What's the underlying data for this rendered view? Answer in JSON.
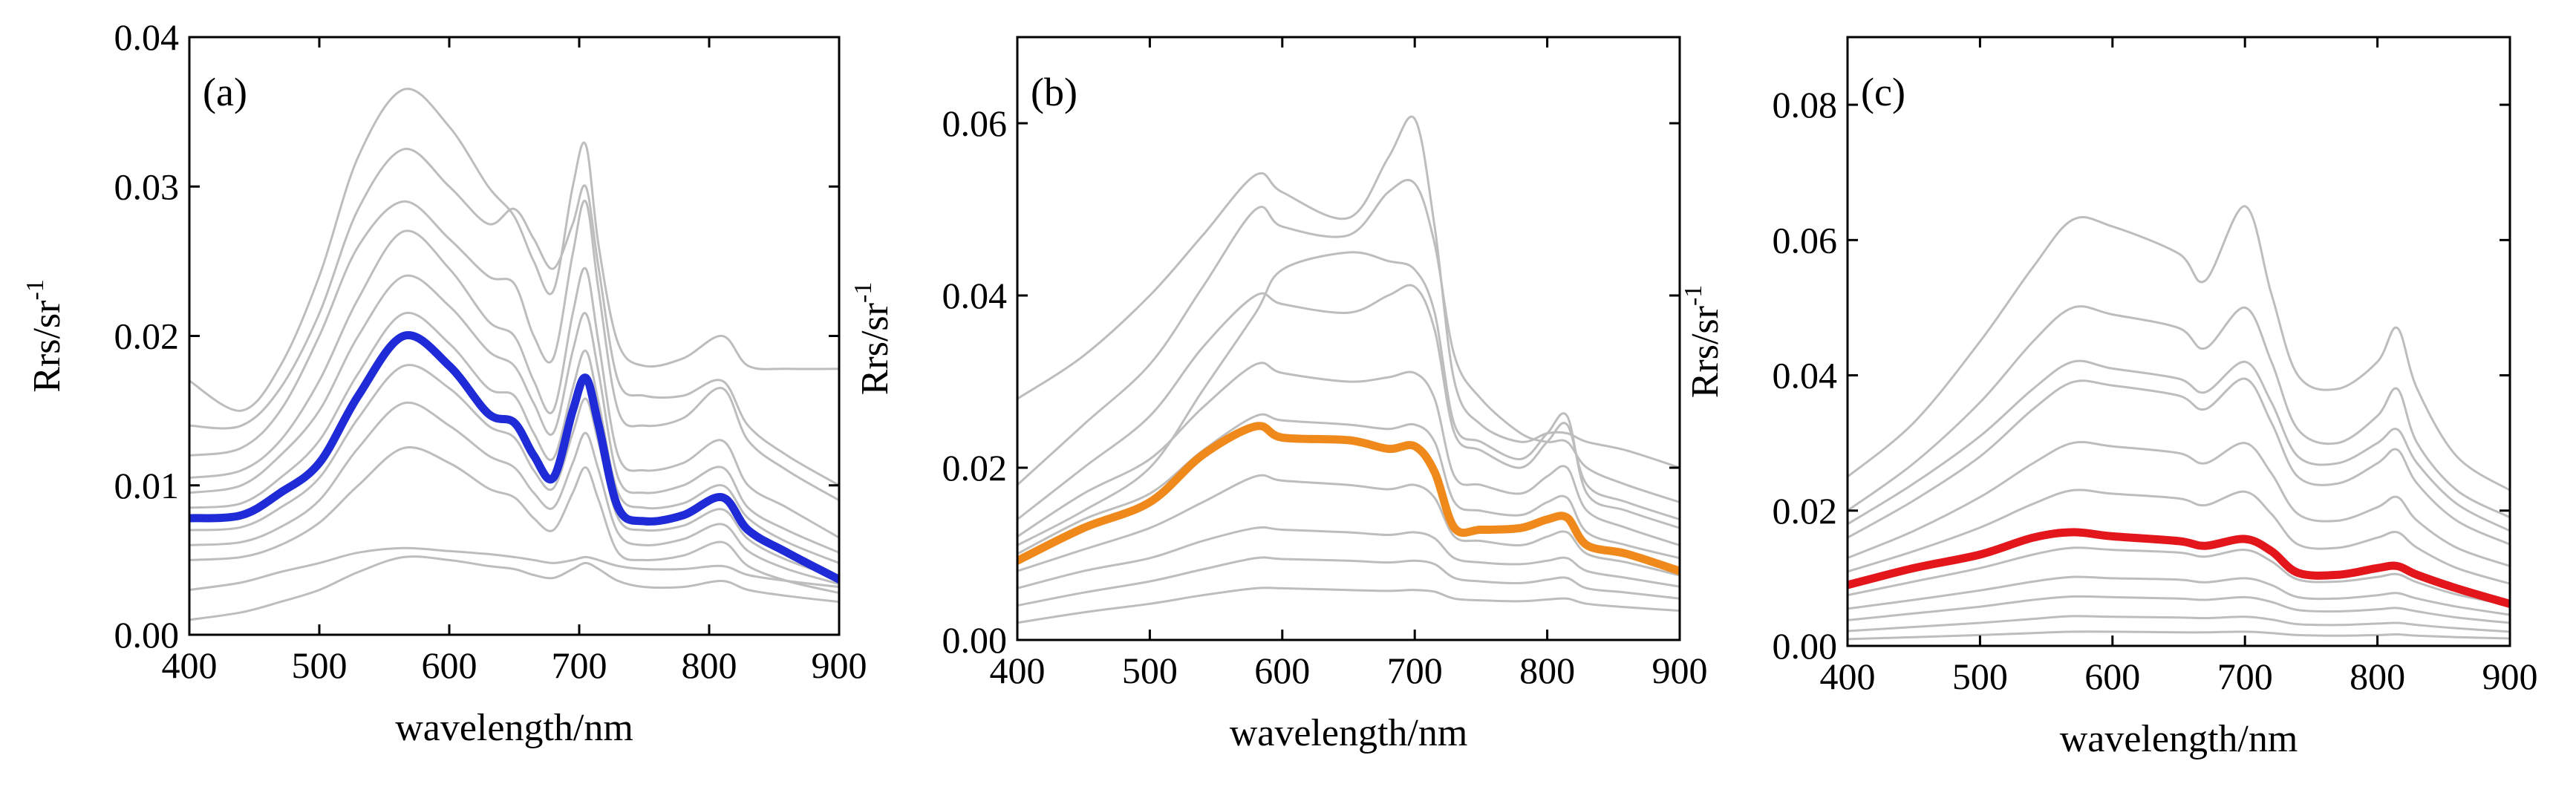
{
  "chart_data": [
    {
      "type": "line",
      "panel_label": "(a)",
      "xlabel": "wavelength/nm",
      "ylabel": "Rrs/sr",
      "ylabel_sup": "-1",
      "xlim": [
        400,
        900
      ],
      "ylim": [
        0,
        0.04
      ],
      "xticks": [
        400,
        500,
        600,
        700,
        800,
        900
      ],
      "xtick_labels": [
        "400",
        "500",
        "600",
        "700",
        "800",
        "900"
      ],
      "yticks": [
        0,
        0.01,
        0.02,
        0.03,
        0.04
      ],
      "ytick_labels": [
        "0.00",
        "0.01",
        "0.02",
        "0.03",
        "0.04"
      ],
      "mean_color": "#1f2bd6",
      "sample_color": "#bdbdbd",
      "x": [
        400,
        440,
        470,
        500,
        530,
        565,
        600,
        630,
        650,
        665,
        680,
        695,
        705,
        715,
        730,
        750,
        780,
        810,
        830,
        860,
        900
      ],
      "series": [
        {
          "name": "mean",
          "values": [
            0.0078,
            0.008,
            0.0095,
            0.0115,
            0.016,
            0.02,
            0.018,
            0.0148,
            0.0142,
            0.012,
            0.0105,
            0.015,
            0.0172,
            0.014,
            0.0085,
            0.0076,
            0.008,
            0.0092,
            0.007,
            0.0055,
            0.0037
          ]
        },
        {
          "name": "sample",
          "values": [
            0.017,
            0.015,
            0.018,
            0.024,
            0.032,
            0.0365,
            0.034,
            0.03,
            0.028,
            0.025,
            0.023,
            0.03,
            0.0328,
            0.026,
            0.0195,
            0.018,
            0.0185,
            0.02,
            0.018,
            0.0178,
            0.0178
          ]
        },
        {
          "name": "sample",
          "values": [
            0.012,
            0.0125,
            0.015,
            0.02,
            0.026,
            0.029,
            0.0265,
            0.024,
            0.0235,
            0.02,
            0.0185,
            0.0255,
            0.029,
            0.023,
            0.015,
            0.014,
            0.0145,
            0.0165,
            0.013,
            0.011,
            0.009
          ]
        },
        {
          "name": "sample",
          "values": [
            0.0105,
            0.011,
            0.013,
            0.017,
            0.0225,
            0.027,
            0.0245,
            0.021,
            0.02,
            0.017,
            0.015,
            0.0215,
            0.0245,
            0.0195,
            0.012,
            0.011,
            0.0115,
            0.013,
            0.01,
            0.0085,
            0.0065
          ]
        },
        {
          "name": "sample",
          "values": [
            0.0095,
            0.01,
            0.012,
            0.015,
            0.02,
            0.024,
            0.022,
            0.019,
            0.018,
            0.0155,
            0.0135,
            0.019,
            0.0215,
            0.0175,
            0.0105,
            0.0095,
            0.01,
            0.0112,
            0.0085,
            0.007,
            0.0055
          ]
        },
        {
          "name": "sample",
          "values": [
            0.0085,
            0.0088,
            0.0105,
            0.013,
            0.0175,
            0.0215,
            0.0195,
            0.0165,
            0.016,
            0.0135,
            0.0118,
            0.0165,
            0.019,
            0.0155,
            0.0095,
            0.0085,
            0.0088,
            0.01,
            0.0078,
            0.0062,
            0.0048
          ]
        },
        {
          "name": "sample",
          "values": [
            0.007,
            0.0072,
            0.0085,
            0.0105,
            0.0145,
            0.018,
            0.0165,
            0.014,
            0.0132,
            0.011,
            0.0098,
            0.0135,
            0.0158,
            0.0128,
            0.0078,
            0.007,
            0.0073,
            0.0084,
            0.0064,
            0.005,
            0.0038
          ]
        },
        {
          "name": "sample",
          "values": [
            0.006,
            0.0062,
            0.0072,
            0.009,
            0.0125,
            0.0155,
            0.014,
            0.012,
            0.0112,
            0.0095,
            0.0085,
            0.0115,
            0.0135,
            0.011,
            0.0068,
            0.006,
            0.0064,
            0.0074,
            0.0056,
            0.0044,
            0.0034
          ]
        },
        {
          "name": "sample",
          "values": [
            0.005,
            0.0052,
            0.006,
            0.0075,
            0.01,
            0.0125,
            0.0115,
            0.0098,
            0.0092,
            0.0078,
            0.007,
            0.0095,
            0.0112,
            0.009,
            0.0055,
            0.005,
            0.0053,
            0.0062,
            0.0046,
            0.0036,
            0.0028
          ]
        },
        {
          "name": "sample",
          "values": [
            0.003,
            0.0035,
            0.0042,
            0.0048,
            0.0055,
            0.0058,
            0.0056,
            0.0054,
            0.0052,
            0.005,
            0.0048,
            0.005,
            0.0052,
            0.005,
            0.0046,
            0.0044,
            0.0044,
            0.0046,
            0.004,
            0.0036,
            0.0032
          ]
        },
        {
          "name": "sample",
          "values": [
            0.001,
            0.0015,
            0.0022,
            0.003,
            0.0042,
            0.0052,
            0.005,
            0.0046,
            0.0044,
            0.004,
            0.0038,
            0.0044,
            0.0048,
            0.0044,
            0.0036,
            0.0032,
            0.0032,
            0.0036,
            0.003,
            0.0026,
            0.0022
          ]
        },
        {
          "name": "sample",
          "values": [
            0.014,
            0.014,
            0.0165,
            0.0215,
            0.0285,
            0.0325,
            0.03,
            0.0275,
            0.0285,
            0.0265,
            0.0245,
            0.0275,
            0.03,
            0.0245,
            0.017,
            0.016,
            0.016,
            0.017,
            0.014,
            0.012,
            0.01
          ]
        }
      ]
    },
    {
      "type": "line",
      "panel_label": "(b)",
      "xlabel": "wavelength/nm",
      "ylabel": "Rrs/sr",
      "ylabel_sup": "-1",
      "xlim": [
        400,
        900
      ],
      "ylim": [
        0,
        0.07
      ],
      "xticks": [
        400,
        500,
        600,
        700,
        800,
        900
      ],
      "xtick_labels": [
        "400",
        "500",
        "600",
        "700",
        "800",
        "900"
      ],
      "yticks": [
        0,
        0.02,
        0.04,
        0.06
      ],
      "ytick_labels": [
        "0.00",
        "0.02",
        "0.04",
        "0.06"
      ],
      "mean_color": "#f0891c",
      "sample_color": "#bdbdbd",
      "x": [
        400,
        450,
        500,
        540,
        580,
        600,
        650,
        680,
        700,
        715,
        730,
        750,
        780,
        800,
        815,
        830,
        860,
        900
      ],
      "series": [
        {
          "name": "mean",
          "values": [
            0.0092,
            0.013,
            0.016,
            0.0215,
            0.0248,
            0.0235,
            0.0232,
            0.0222,
            0.0225,
            0.0195,
            0.013,
            0.0128,
            0.013,
            0.014,
            0.0142,
            0.011,
            0.01,
            0.008
          ]
        },
        {
          "name": "sample",
          "values": [
            0.028,
            0.033,
            0.04,
            0.047,
            0.054,
            0.052,
            0.049,
            0.056,
            0.0605,
            0.048,
            0.03,
            0.025,
            0.023,
            0.024,
            0.024,
            0.023,
            0.022,
            0.02
          ]
        },
        {
          "name": "sample",
          "values": [
            0.018,
            0.025,
            0.032,
            0.041,
            0.05,
            0.048,
            0.047,
            0.052,
            0.053,
            0.046,
            0.033,
            0.028,
            0.024,
            0.023,
            0.023,
            0.02,
            0.018,
            0.016
          ]
        },
        {
          "name": "sample",
          "values": [
            0.014,
            0.02,
            0.026,
            0.034,
            0.04,
            0.039,
            0.038,
            0.04,
            0.041,
            0.036,
            0.024,
            0.022,
            0.02,
            0.023,
            0.025,
            0.018,
            0.016,
            0.014
          ]
        },
        {
          "name": "sample",
          "values": [
            0.012,
            0.017,
            0.021,
            0.027,
            0.032,
            0.031,
            0.03,
            0.0305,
            0.031,
            0.028,
            0.019,
            0.018,
            0.017,
            0.019,
            0.02,
            0.015,
            0.013,
            0.011
          ]
        },
        {
          "name": "sample",
          "values": [
            0.01,
            0.014,
            0.017,
            0.022,
            0.026,
            0.0255,
            0.025,
            0.0245,
            0.025,
            0.023,
            0.016,
            0.015,
            0.0145,
            0.016,
            0.0165,
            0.0125,
            0.011,
            0.0095
          ]
        },
        {
          "name": "sample",
          "values": [
            0.008,
            0.0105,
            0.013,
            0.016,
            0.019,
            0.0185,
            0.018,
            0.0175,
            0.018,
            0.0165,
            0.012,
            0.0115,
            0.011,
            0.012,
            0.0125,
            0.01,
            0.009,
            0.0075
          ]
        },
        {
          "name": "sample",
          "values": [
            0.006,
            0.008,
            0.0095,
            0.0115,
            0.013,
            0.0128,
            0.0125,
            0.0122,
            0.0125,
            0.0118,
            0.0095,
            0.009,
            0.0088,
            0.0092,
            0.0095,
            0.008,
            0.0072,
            0.0062
          ]
        },
        {
          "name": "sample",
          "values": [
            0.004,
            0.0055,
            0.0068,
            0.0082,
            0.0095,
            0.0094,
            0.0092,
            0.009,
            0.0092,
            0.0088,
            0.0072,
            0.0068,
            0.0066,
            0.007,
            0.0072,
            0.006,
            0.0055,
            0.0048
          ]
        },
        {
          "name": "sample",
          "values": [
            0.002,
            0.0032,
            0.0042,
            0.0052,
            0.006,
            0.006,
            0.0058,
            0.0057,
            0.0058,
            0.0056,
            0.0048,
            0.0046,
            0.0045,
            0.0047,
            0.0048,
            0.0042,
            0.0038,
            0.0034
          ]
        },
        {
          "name": "sample",
          "values": [
            0.011,
            0.015,
            0.02,
            0.029,
            0.038,
            0.043,
            0.045,
            0.044,
            0.043,
            0.038,
            0.025,
            0.023,
            0.021,
            0.024,
            0.026,
            0.017,
            0.015,
            0.013
          ]
        }
      ]
    },
    {
      "type": "line",
      "panel_label": "(c)",
      "xlabel": "wavelength/nm",
      "ylabel": "Rrs/sr",
      "ylabel_sup": "-1",
      "xlim": [
        400,
        900
      ],
      "ylim": [
        0,
        0.09
      ],
      "xticks": [
        400,
        500,
        600,
        700,
        800,
        900
      ],
      "xtick_labels": [
        "400",
        "500",
        "600",
        "700",
        "800",
        "900"
      ],
      "yticks": [
        0,
        0.02,
        0.04,
        0.06,
        0.08
      ],
      "ytick_labels": [
        "0.00",
        "0.02",
        "0.04",
        "0.06",
        "0.08"
      ],
      "mean_color": "#e3161b",
      "sample_color": "#bdbdbd",
      "x": [
        400,
        450,
        500,
        540,
        570,
        600,
        650,
        670,
        700,
        720,
        740,
        770,
        800,
        815,
        830,
        860,
        900
      ],
      "series": [
        {
          "name": "mean",
          "values": [
            0.009,
            0.0115,
            0.0135,
            0.016,
            0.0168,
            0.0162,
            0.0155,
            0.0148,
            0.0158,
            0.014,
            0.0108,
            0.0105,
            0.0115,
            0.0118,
            0.0105,
            0.0085,
            0.0062
          ]
        },
        {
          "name": "sample",
          "values": [
            0.025,
            0.033,
            0.045,
            0.056,
            0.063,
            0.062,
            0.058,
            0.054,
            0.065,
            0.052,
            0.04,
            0.038,
            0.042,
            0.047,
            0.038,
            0.028,
            0.023
          ]
        },
        {
          "name": "sample",
          "values": [
            0.02,
            0.027,
            0.036,
            0.045,
            0.05,
            0.049,
            0.047,
            0.044,
            0.05,
            0.042,
            0.032,
            0.03,
            0.034,
            0.038,
            0.03,
            0.023,
            0.019
          ]
        },
        {
          "name": "sample",
          "values": [
            0.016,
            0.0215,
            0.028,
            0.035,
            0.039,
            0.0385,
            0.037,
            0.035,
            0.0395,
            0.033,
            0.025,
            0.024,
            0.027,
            0.029,
            0.024,
            0.0185,
            0.015
          ]
        },
        {
          "name": "sample",
          "values": [
            0.013,
            0.017,
            0.022,
            0.027,
            0.03,
            0.0295,
            0.0285,
            0.027,
            0.03,
            0.0255,
            0.0195,
            0.0185,
            0.0205,
            0.022,
            0.0185,
            0.0145,
            0.0118
          ]
        },
        {
          "name": "sample",
          "values": [
            0.011,
            0.014,
            0.0175,
            0.021,
            0.023,
            0.0225,
            0.0218,
            0.0208,
            0.0228,
            0.0195,
            0.015,
            0.0145,
            0.016,
            0.0168,
            0.0145,
            0.0115,
            0.0092
          ]
        },
        {
          "name": "sample",
          "values": [
            0.0075,
            0.0095,
            0.0115,
            0.0135,
            0.0145,
            0.0142,
            0.0138,
            0.0132,
            0.0142,
            0.0125,
            0.0098,
            0.0095,
            0.0102,
            0.0106,
            0.0094,
            0.0076,
            0.006
          ]
        },
        {
          "name": "sample",
          "values": [
            0.0055,
            0.0068,
            0.0082,
            0.0095,
            0.0102,
            0.01,
            0.0098,
            0.0094,
            0.01,
            0.009,
            0.0072,
            0.007,
            0.0075,
            0.0078,
            0.007,
            0.0058,
            0.0046
          ]
        },
        {
          "name": "sample",
          "values": [
            0.0038,
            0.0048,
            0.0058,
            0.0068,
            0.0073,
            0.0072,
            0.007,
            0.0068,
            0.0072,
            0.0065,
            0.0053,
            0.0051,
            0.0054,
            0.0056,
            0.0051,
            0.0042,
            0.0034
          ]
        },
        {
          "name": "sample",
          "values": [
            0.0022,
            0.0028,
            0.0034,
            0.004,
            0.0044,
            0.0043,
            0.0042,
            0.0041,
            0.0043,
            0.0039,
            0.0032,
            0.0031,
            0.0033,
            0.0034,
            0.0031,
            0.0026,
            0.0021
          ]
        },
        {
          "name": "sample",
          "values": [
            0.001,
            0.0013,
            0.0016,
            0.0019,
            0.0021,
            0.0021,
            0.002,
            0.002,
            0.0021,
            0.0019,
            0.0016,
            0.0015,
            0.0016,
            0.0017,
            0.0015,
            0.0013,
            0.0011
          ]
        },
        {
          "name": "sample",
          "values": [
            0.018,
            0.024,
            0.031,
            0.038,
            0.042,
            0.041,
            0.0395,
            0.0375,
            0.042,
            0.036,
            0.028,
            0.027,
            0.03,
            0.032,
            0.027,
            0.021,
            0.017
          ]
        }
      ]
    }
  ]
}
